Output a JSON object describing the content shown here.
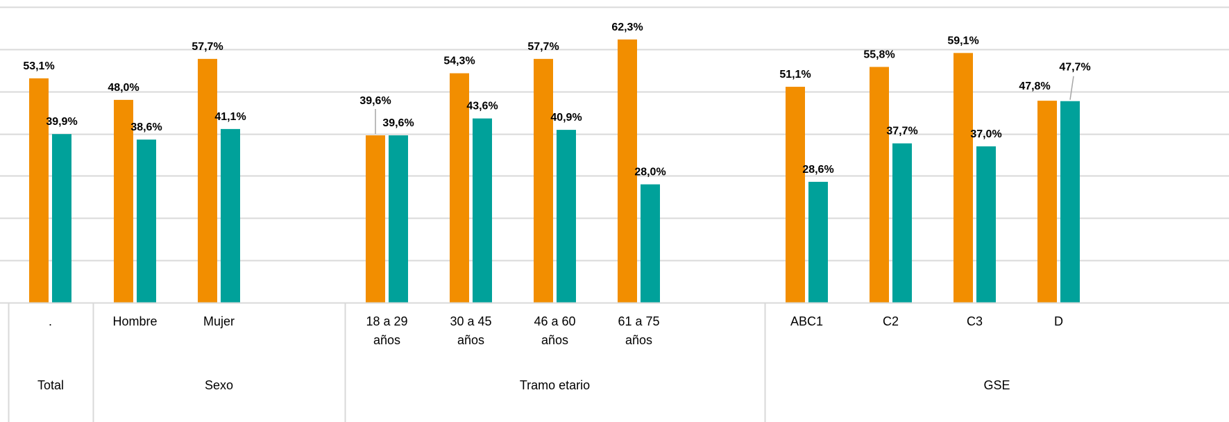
{
  "chart_data": {
    "type": "bar",
    "ylim": [
      0,
      70
    ],
    "grid": true,
    "legend": "none",
    "groups": [
      {
        "label": "Total",
        "categories": [
          {
            "line1": ".",
            "line2": ""
          }
        ]
      },
      {
        "label": "Sexo",
        "categories": [
          {
            "line1": "Hombre",
            "line2": ""
          },
          {
            "line1": "Mujer",
            "line2": ""
          }
        ]
      },
      {
        "label": "Tramo etario",
        "categories": [
          {
            "line1": "18 a 29",
            "line2": "años"
          },
          {
            "line1": "30 a 45",
            "line2": "años"
          },
          {
            "line1": "46 a 60",
            "line2": "años"
          },
          {
            "line1": "61 a 75",
            "line2": "años"
          }
        ]
      },
      {
        "label": "GSE",
        "categories": [
          {
            "line1": "ABC1",
            "line2": ""
          },
          {
            "line1": "C2",
            "line2": ""
          },
          {
            "line1": "C3",
            "line2": ""
          },
          {
            "line1": "D",
            "line2": ""
          }
        ]
      }
    ],
    "series": [
      {
        "color": "#f28e00",
        "values": [
          53.1,
          48.0,
          57.7,
          39.6,
          54.3,
          57.7,
          62.3,
          51.1,
          55.8,
          59.1,
          47.8
        ],
        "labels": [
          "53,1%",
          "48,0%",
          "57,7%",
          "39,6%",
          "54,3%",
          "57,7%",
          "62,3%",
          "51,1%",
          "55,8%",
          "59,1%",
          "47,8%"
        ]
      },
      {
        "color": "#00a19a",
        "values": [
          39.9,
          38.6,
          41.1,
          39.6,
          43.6,
          40.9,
          28.0,
          28.6,
          37.7,
          37.0,
          47.7
        ],
        "labels": [
          "39,9%",
          "38,6%",
          "41,1%",
          "39,6%",
          "43,6%",
          "40,9%",
          "28,0%",
          "28,6%",
          "37,7%",
          "37,0%",
          "47,7%"
        ]
      }
    ]
  }
}
